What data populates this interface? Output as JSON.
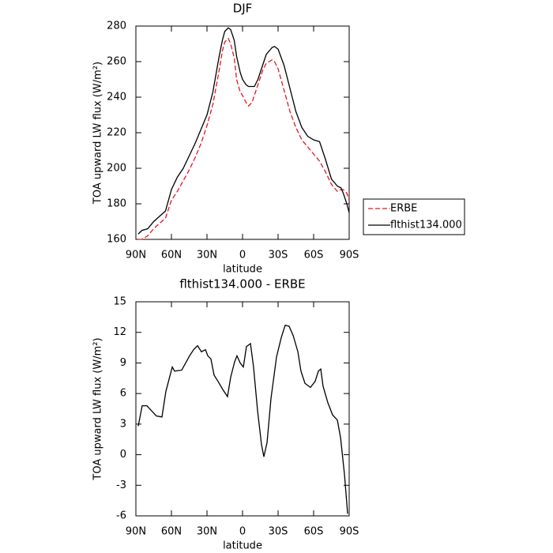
{
  "chart_data": [
    {
      "type": "line",
      "title": "DJF",
      "xlabel": "latitude",
      "ylabel": "TOA upward LW flux (W/m²)",
      "x": [
        88,
        85,
        80,
        75,
        70,
        65,
        60,
        55,
        50,
        45,
        40,
        35,
        30,
        25,
        20,
        17,
        15,
        12,
        10,
        7,
        5,
        2,
        0,
        -3,
        -5,
        -8,
        -10,
        -13,
        -17,
        -20,
        -25,
        -27,
        -30,
        -35,
        -40,
        -45,
        -50,
        -55,
        -60,
        -65,
        -70,
        -75,
        -80,
        -83,
        -85,
        -88,
        -90
      ],
      "series": [
        {
          "name": "ERBE",
          "color": "#e8141c",
          "style": "dashed",
          "values": [
            160,
            160,
            162,
            166,
            169,
            172,
            182,
            187,
            193,
            199,
            206,
            214,
            224,
            236,
            254,
            266,
            271,
            273,
            270,
            262,
            250,
            243,
            241,
            237,
            235,
            237,
            241,
            247,
            255,
            259,
            261,
            260,
            256,
            244,
            232,
            223,
            216,
            212,
            208,
            204,
            198,
            191,
            187,
            188,
            188,
            186,
            182
          ]
        },
        {
          "name": "flthist134.000",
          "color": "#000000",
          "style": "solid",
          "values": [
            163,
            165,
            166,
            170,
            173,
            176,
            188,
            195,
            200,
            207,
            214,
            222,
            230,
            243,
            262,
            272,
            277,
            279,
            278,
            272,
            263,
            254,
            250,
            247,
            246,
            246,
            246,
            250,
            258,
            264,
            268,
            268.5,
            267,
            258,
            245,
            232,
            223,
            218,
            216,
            215,
            205,
            194,
            190,
            189,
            186,
            180,
            175
          ]
        }
      ],
      "xlim": [
        90,
        -90
      ],
      "xticks": [
        {
          "value": 90,
          "label": "90N"
        },
        {
          "value": 60,
          "label": "60N"
        },
        {
          "value": 30,
          "label": "30N"
        },
        0,
        {
          "value": -30,
          "label": "30S"
        },
        {
          "value": -60,
          "label": "60S"
        },
        {
          "value": -90,
          "label": "90S"
        }
      ],
      "ylim": [
        160,
        280
      ],
      "yticks": [
        160,
        180,
        200,
        220,
        240,
        260,
        280
      ],
      "legend": "right"
    },
    {
      "type": "line",
      "title": "flthist134.000 - ERBE",
      "xlabel": "latitude",
      "ylabel": "TOA upward LW flux (W/m²)",
      "x": [
        88,
        84.7,
        80.7,
        76.7,
        72.7,
        68,
        64.7,
        59.3,
        57.3,
        51.3,
        48,
        44.7,
        41.3,
        38,
        34.7,
        31.3,
        29.3,
        26.7,
        24,
        20.7,
        16.7,
        12.7,
        10,
        6.7,
        4.7,
        2,
        -0.7,
        -3.3,
        -6.7,
        -9.3,
        -12.7,
        -16,
        -18,
        -20.7,
        -24,
        -28.7,
        -32.7,
        -36,
        -39.3,
        -42.7,
        -46.7,
        -49.3,
        -52.7,
        -57.3,
        -61.3,
        -64,
        -66,
        -68,
        -72,
        -76,
        -80,
        -82.7,
        -86,
        -88.7
      ],
      "series": [
        {
          "name": "flthist134.000 - ERBE",
          "color": "#000000",
          "style": "solid",
          "values": [
            2.8,
            4.8,
            4.8,
            4.3,
            3.8,
            3.7,
            6.2,
            8.6,
            8.2,
            8.3,
            9,
            9.7,
            10.3,
            10.7,
            10.1,
            10.3,
            9.7,
            9.4,
            7.8,
            7.2,
            6.4,
            5.7,
            7.6,
            9.1,
            9.7,
            9.0,
            8.6,
            10.6,
            10.9,
            8.6,
            4.3,
            1.0,
            -0.2,
            1.2,
            5.5,
            9.6,
            11.5,
            12.7,
            12.6,
            11.7,
            10.1,
            8.2,
            7.0,
            6.6,
            7.2,
            8.2,
            8.4,
            6.7,
            5.1,
            3.9,
            3.4,
            1.7,
            -1.9,
            -5.8
          ]
        }
      ],
      "xlim": [
        90,
        -90
      ],
      "xticks": [
        {
          "value": 90,
          "label": "90N"
        },
        {
          "value": 60,
          "label": "60N"
        },
        {
          "value": 30,
          "label": "30N"
        },
        0,
        {
          "value": -30,
          "label": "30S"
        },
        {
          "value": -60,
          "label": "60S"
        },
        {
          "value": -90,
          "label": "90S"
        }
      ],
      "ylim": [
        -6,
        15
      ],
      "yticks": [
        -6,
        -3,
        0,
        3,
        6,
        9,
        12,
        15
      ]
    }
  ]
}
